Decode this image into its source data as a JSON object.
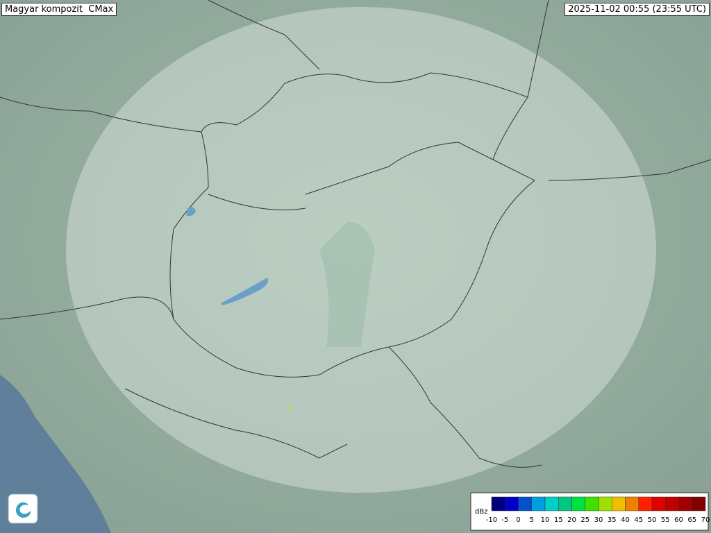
{
  "header": {
    "title": "Magyar kompozit  CMax",
    "timestamp": "2025-11-02 00:55 (23:55 UTC)"
  },
  "legend": {
    "unit": "dBz",
    "ticks": [
      -10,
      -5,
      0,
      5,
      10,
      15,
      20,
      25,
      30,
      35,
      40,
      45,
      50,
      55,
      60,
      65,
      70
    ],
    "colors": [
      "#00007f",
      "#0000c8",
      "#0050d0",
      "#00a0e0",
      "#00d0c8",
      "#00c880",
      "#00e040",
      "#40e000",
      "#a0e000",
      "#f0c000",
      "#f08000",
      "#ff2000",
      "#e00000",
      "#c00000",
      "#a00000",
      "#800000"
    ]
  }
}
